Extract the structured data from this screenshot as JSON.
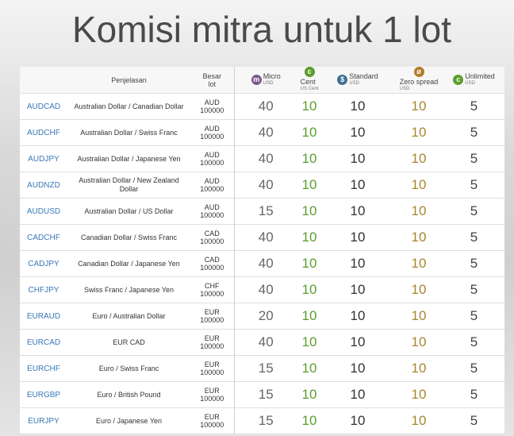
{
  "header": {
    "title": "Komisi mitra untuk 1 lot"
  },
  "table": {
    "columns": {
      "description": "Penjelasan",
      "lot": [
        "Besar",
        "lot"
      ],
      "accounts": [
        {
          "icon": "m",
          "name": "Micro",
          "unit": "USD",
          "color": "#7a5a8c"
        },
        {
          "icon": "c",
          "name": "Cent",
          "unit": "US Cent",
          "color": "#5a9e2e"
        },
        {
          "icon": "$",
          "name": "Standard",
          "unit": "USD",
          "color": "#3d6f94"
        },
        {
          "icon": "ø",
          "name": "Zero spread",
          "unit": "USD",
          "color": "#b07d2a"
        },
        {
          "icon": "c",
          "name": "Unlimited",
          "unit": "USD",
          "color": "#5a9e2e"
        }
      ]
    },
    "value_colors": [
      "#666666",
      "#5a9e2e",
      "#333333",
      "#a8862e",
      "#444444"
    ],
    "rows": [
      [
        "AUDCAD",
        "Australian Dollar / Canadian Dollar",
        "AUD",
        "100000",
        40,
        10,
        10,
        10,
        5
      ],
      [
        "AUDCHF",
        "Australian Dollar / Swiss Franc",
        "AUD",
        "100000",
        40,
        10,
        10,
        10,
        5
      ],
      [
        "AUDJPY",
        "Australian Dollar / Japanese Yen",
        "AUD",
        "100000",
        40,
        10,
        10,
        10,
        5
      ],
      [
        "AUDNZD",
        "Australian Dollar / New Zealand Dollar",
        "AUD",
        "100000",
        40,
        10,
        10,
        10,
        5
      ],
      [
        "AUDUSD",
        "Australian Dollar / US Dollar",
        "AUD",
        "100000",
        15,
        10,
        10,
        10,
        5
      ],
      [
        "CADCHF",
        "Canadian Dollar / Swiss Franc",
        "CAD",
        "100000",
        40,
        10,
        10,
        10,
        5
      ],
      [
        "CADJPY",
        "Canadian Dollar / Japanese Yen",
        "CAD",
        "100000",
        40,
        10,
        10,
        10,
        5
      ],
      [
        "CHFJPY",
        "Swiss Franc / Japanese Yen",
        "CHF",
        "100000",
        40,
        10,
        10,
        10,
        5
      ],
      [
        "EURAUD",
        "Euro / Australian Dollar",
        "EUR",
        "100000",
        20,
        10,
        10,
        10,
        5
      ],
      [
        "EURCAD",
        "EUR CAD",
        "EUR",
        "100000",
        40,
        10,
        10,
        10,
        5
      ],
      [
        "EURCHF",
        "Euro / Swiss Franc",
        "EUR",
        "100000",
        15,
        10,
        10,
        10,
        5
      ],
      [
        "EURGBP",
        "Euro / British Pound",
        "EUR",
        "100000",
        15,
        10,
        10,
        10,
        5
      ],
      [
        "EURJPY",
        "Euro / Japanese Yen",
        "EUR",
        "100000",
        15,
        10,
        10,
        10,
        5
      ]
    ]
  }
}
